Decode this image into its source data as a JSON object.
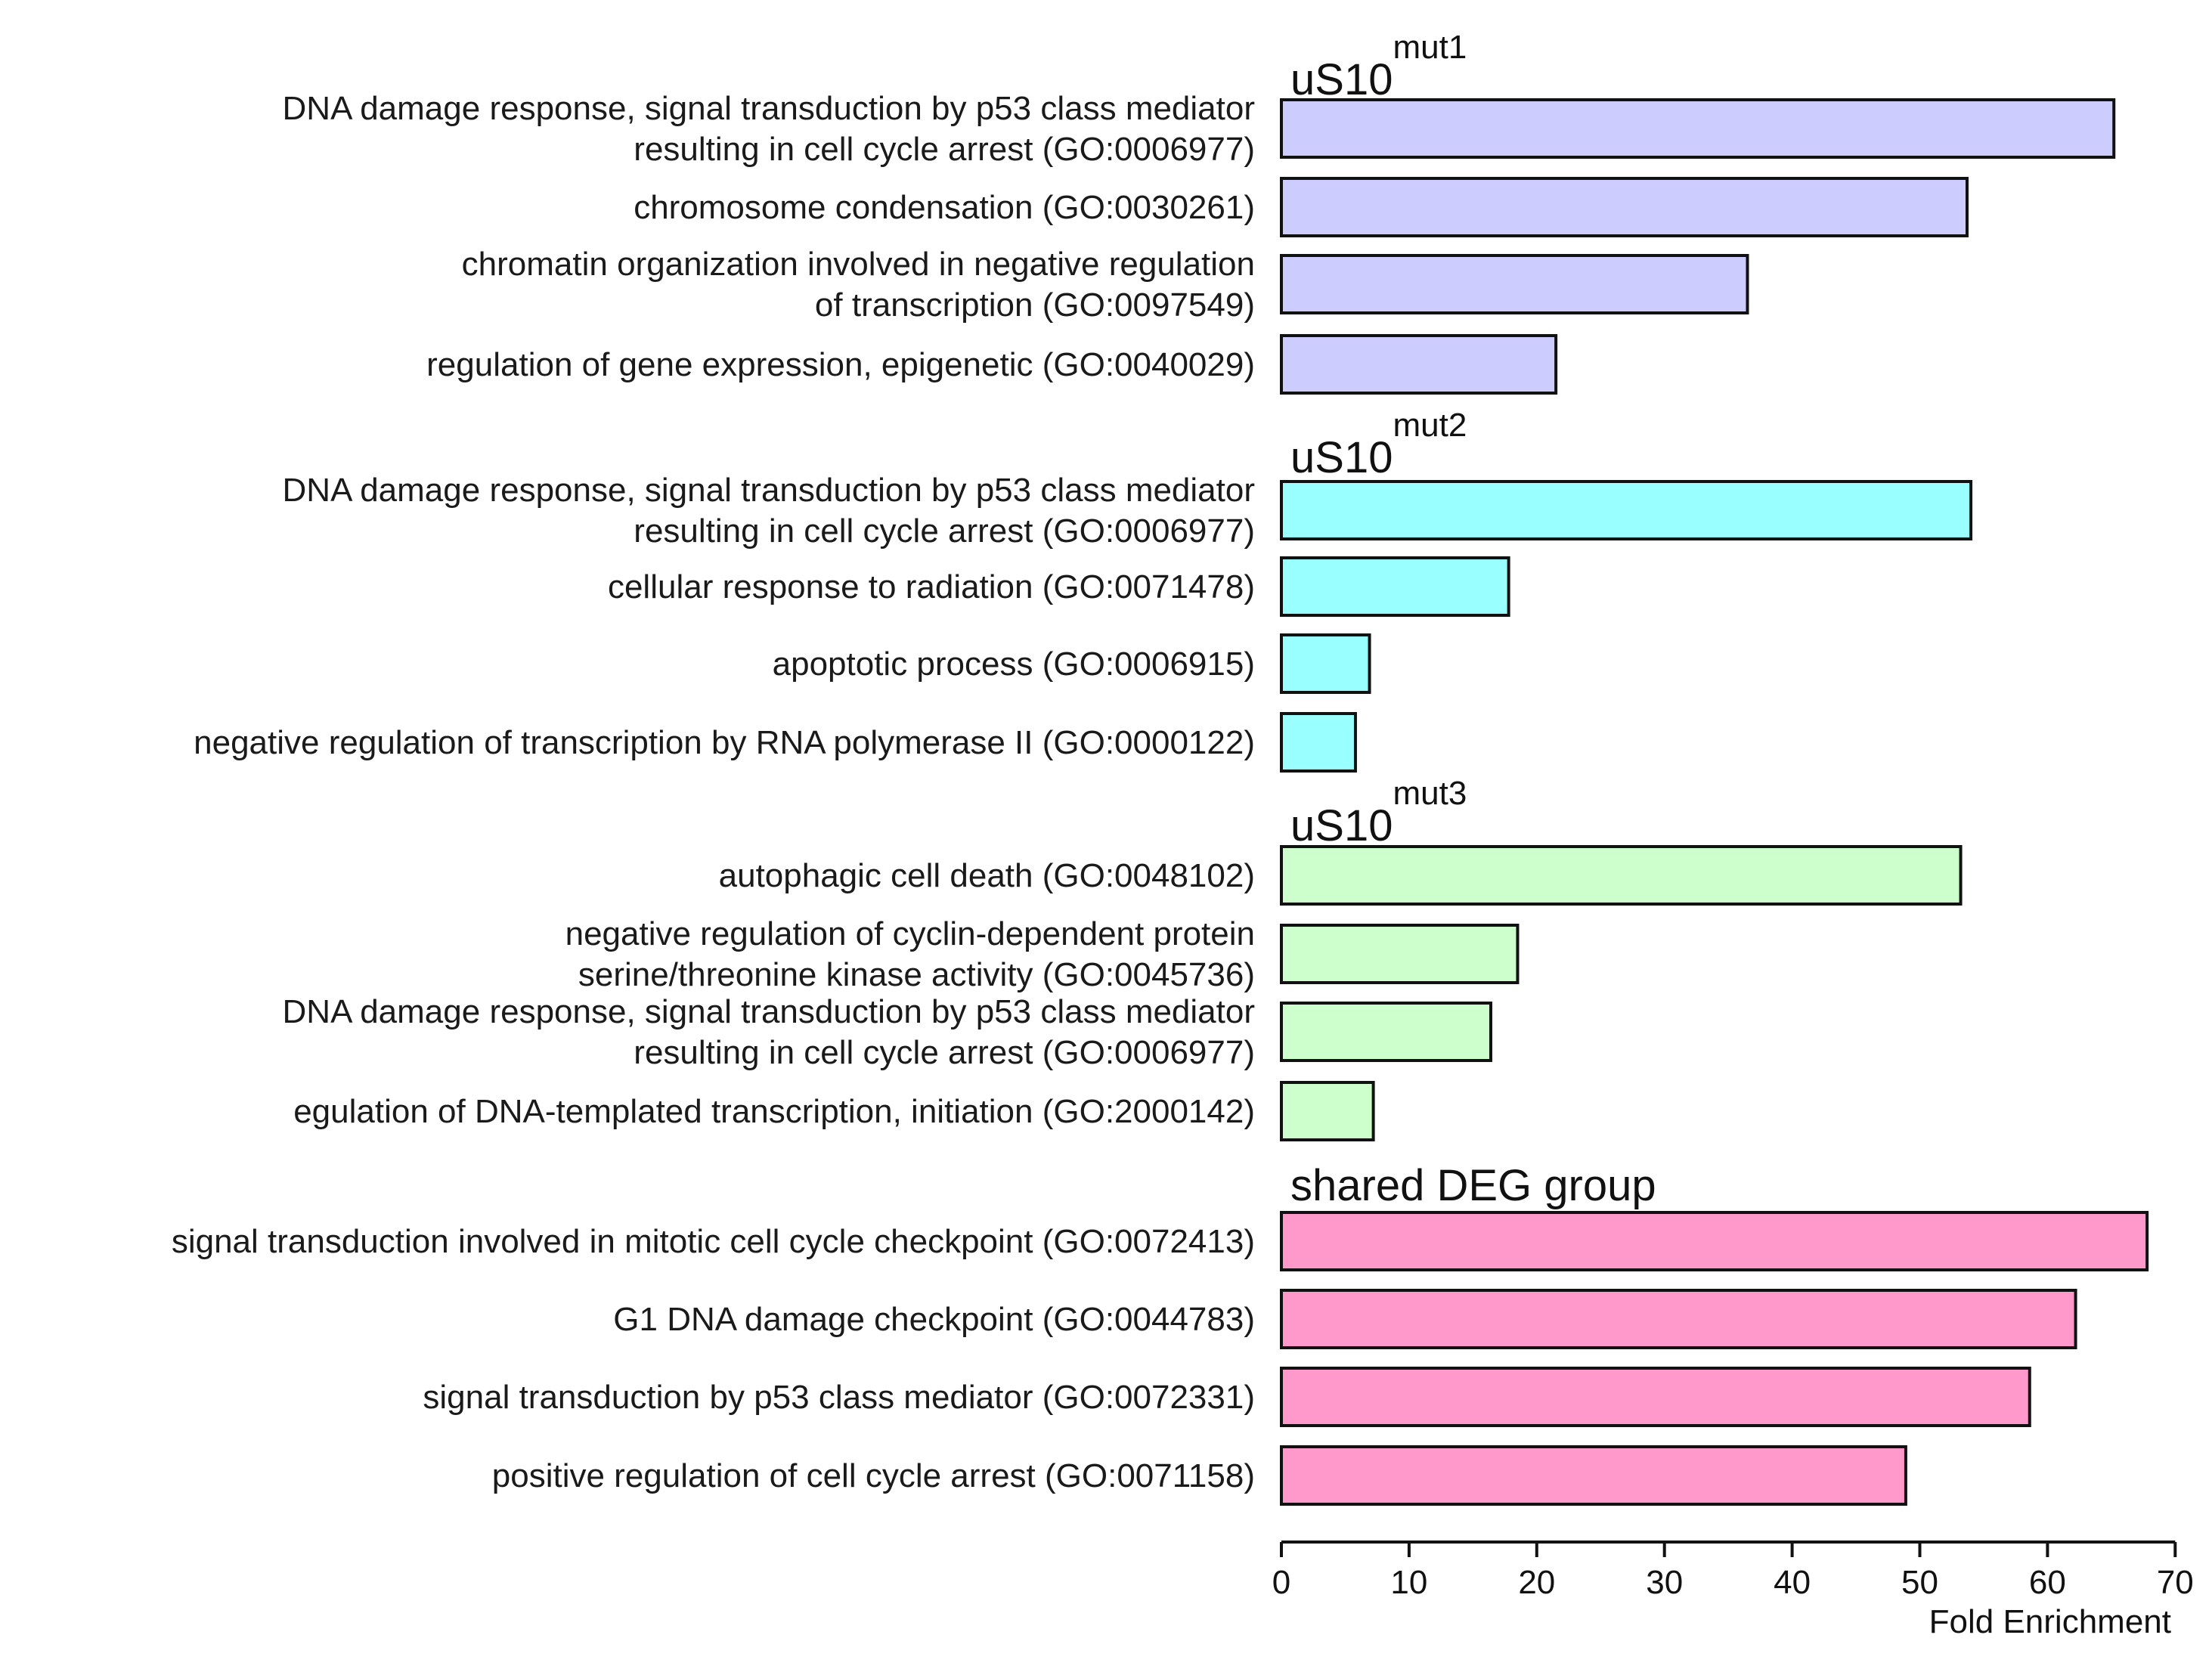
{
  "chart_data": {
    "type": "bar",
    "orientation": "horizontal",
    "xlabel": "Fold Enrichment",
    "xlim": [
      0,
      70
    ],
    "xticks": [
      0,
      10,
      20,
      30,
      40,
      50,
      60,
      70
    ],
    "groups": [
      {
        "title": "uS10",
        "superscript": "mut1",
        "color": "#ccccff",
        "categories": [
          [
            "DNA damage response, signal transduction by p53 class mediator",
            "resulting in cell cycle arrest (GO:0006977)"
          ],
          [
            "chromosome condensation (GO:0030261)"
          ],
          [
            "chromatin organization involved in negative regulation",
            "of transcription (GO:0097549)"
          ],
          [
            "regulation of gene expression, epigenetic (GO:0040029)"
          ]
        ],
        "values": [
          65.2,
          53.7,
          36.5,
          21.5
        ]
      },
      {
        "title": "uS10",
        "superscript": "mut2",
        "color": "#99ffff",
        "categories": [
          [
            "DNA damage response, signal transduction by p53 class mediator",
            "resulting in cell cycle arrest (GO:0006977)"
          ],
          [
            "cellular response to radiation (GO:0071478)"
          ],
          [
            "apoptotic process (GO:0006915)"
          ],
          [
            "negative regulation of transcription by RNA polymerase II (GO:0000122)"
          ]
        ],
        "values": [
          54.0,
          17.8,
          6.9,
          5.8
        ]
      },
      {
        "title": "uS10",
        "superscript": "mut3",
        "color": "#ccffcc",
        "categories": [
          [
            "autophagic cell death (GO:0048102)"
          ],
          [
            "negative regulation of cyclin-dependent protein",
            "serine/threonine kinase activity (GO:0045736)"
          ],
          [
            "DNA damage response, signal transduction by p53 class mediator",
            "resulting in cell cycle arrest (GO:0006977)"
          ],
          [
            "egulation of DNA-templated transcription, initiation (GO:2000142)"
          ]
        ],
        "values": [
          53.2,
          18.5,
          16.4,
          7.2
        ]
      },
      {
        "title": "shared DEG group",
        "superscript": "",
        "color": "#ff99cc",
        "categories": [
          [
            "signal transduction involved in mitotic cell cycle checkpoint (GO:0072413)"
          ],
          [
            "G1 DNA damage checkpoint (GO:0044783)"
          ],
          [
            "signal transduction by p53 class mediator (GO:0072331)"
          ],
          [
            "positive regulation of cell cycle arrest (GO:0071158)"
          ]
        ],
        "values": [
          67.8,
          62.2,
          58.6,
          48.9
        ]
      }
    ]
  }
}
